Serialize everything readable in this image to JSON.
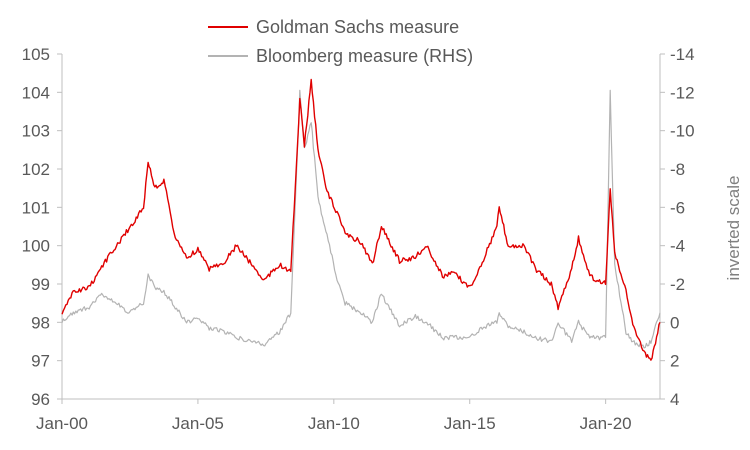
{
  "chart_data": {
    "type": "line",
    "title": "",
    "xlabel": "",
    "ylabel_left": "",
    "ylabel_right": "inverted scale",
    "legend_position": "top-center",
    "grid": false,
    "x_ticks": [
      "Jan-00",
      "Jan-05",
      "Jan-10",
      "Jan-15",
      "Jan-20"
    ],
    "x_range": [
      "2000-01",
      "2022-01"
    ],
    "y_left": {
      "min": 96,
      "max": 105,
      "ticks": [
        "96",
        "97",
        "98",
        "99",
        "100",
        "101",
        "102",
        "103",
        "104",
        "105"
      ]
    },
    "y_right": {
      "min": -14,
      "max": 4,
      "inverted": true,
      "ticks": [
        "-14",
        "-12",
        "-10",
        "-8",
        "-6",
        "-4",
        "-2",
        "0",
        "2",
        "4"
      ]
    },
    "series": [
      {
        "name": "Goldman Sachs measure",
        "axis": "left",
        "color": "#e00000",
        "points": [
          [
            "2000-01",
            98.2
          ],
          [
            "2000-06",
            98.8
          ],
          [
            "2001-01",
            98.9
          ],
          [
            "2001-06",
            99.4
          ],
          [
            "2002-01",
            100.0
          ],
          [
            "2002-06",
            100.4
          ],
          [
            "2003-01",
            101.0
          ],
          [
            "2003-03",
            102.2
          ],
          [
            "2003-06",
            101.5
          ],
          [
            "2003-10",
            101.7
          ],
          [
            "2004-03",
            100.2
          ],
          [
            "2004-08",
            99.7
          ],
          [
            "2005-01",
            99.9
          ],
          [
            "2005-06",
            99.4
          ],
          [
            "2006-01",
            99.6
          ],
          [
            "2006-06",
            100.0
          ],
          [
            "2007-01",
            99.5
          ],
          [
            "2007-06",
            99.1
          ],
          [
            "2008-01",
            99.5
          ],
          [
            "2008-06",
            99.3
          ],
          [
            "2008-10",
            103.8
          ],
          [
            "2008-12",
            102.6
          ],
          [
            "2009-03",
            104.3
          ],
          [
            "2009-06",
            102.5
          ],
          [
            "2009-10",
            101.4
          ],
          [
            "2010-03",
            100.8
          ],
          [
            "2010-06",
            100.3
          ],
          [
            "2011-01",
            100.1
          ],
          [
            "2011-06",
            99.5
          ],
          [
            "2011-10",
            100.5
          ],
          [
            "2012-06",
            99.6
          ],
          [
            "2013-01",
            99.7
          ],
          [
            "2013-06",
            100.0
          ],
          [
            "2014-01",
            99.2
          ],
          [
            "2014-06",
            99.3
          ],
          [
            "2015-01",
            98.9
          ],
          [
            "2015-06",
            99.5
          ],
          [
            "2016-01",
            100.5
          ],
          [
            "2016-02",
            101.0
          ],
          [
            "2016-06",
            100.0
          ],
          [
            "2017-01",
            100.0
          ],
          [
            "2017-06",
            99.4
          ],
          [
            "2018-01",
            99.0
          ],
          [
            "2018-04",
            98.4
          ],
          [
            "2018-10",
            99.4
          ],
          [
            "2019-01",
            100.2
          ],
          [
            "2019-06",
            99.2
          ],
          [
            "2020-01",
            99.0
          ],
          [
            "2020-03",
            101.5
          ],
          [
            "2020-05",
            99.8
          ],
          [
            "2020-10",
            98.8
          ],
          [
            "2021-01",
            97.9
          ],
          [
            "2021-06",
            97.2
          ],
          [
            "2021-09",
            97.0
          ],
          [
            "2022-01",
            98.0
          ]
        ]
      },
      {
        "name": "Bloomberg measure (RHS)",
        "axis": "right",
        "color": "#b3b3b3",
        "points": [
          [
            "2000-01",
            0.0
          ],
          [
            "2000-06",
            -0.5
          ],
          [
            "2001-01",
            -0.8
          ],
          [
            "2001-06",
            -1.5
          ],
          [
            "2002-01",
            -1.0
          ],
          [
            "2002-06",
            -0.5
          ],
          [
            "2003-01",
            -1.0
          ],
          [
            "2003-03",
            -2.5
          ],
          [
            "2003-06",
            -1.8
          ],
          [
            "2003-10",
            -1.6
          ],
          [
            "2004-03",
            -0.8
          ],
          [
            "2004-08",
            0.0
          ],
          [
            "2005-01",
            -0.2
          ],
          [
            "2005-06",
            0.3
          ],
          [
            "2006-01",
            0.5
          ],
          [
            "2006-06",
            0.8
          ],
          [
            "2007-01",
            1.0
          ],
          [
            "2007-06",
            1.2
          ],
          [
            "2008-01",
            0.5
          ],
          [
            "2008-06",
            -0.5
          ],
          [
            "2008-10",
            -12.0
          ],
          [
            "2008-12",
            -9.0
          ],
          [
            "2009-03",
            -10.5
          ],
          [
            "2009-06",
            -6.5
          ],
          [
            "2009-10",
            -4.5
          ],
          [
            "2010-03",
            -2.0
          ],
          [
            "2010-06",
            -1.0
          ],
          [
            "2011-01",
            -0.5
          ],
          [
            "2011-06",
            0.0
          ],
          [
            "2011-10",
            -1.5
          ],
          [
            "2012-06",
            0.2
          ],
          [
            "2013-01",
            -0.3
          ],
          [
            "2013-06",
            0.0
          ],
          [
            "2014-01",
            0.8
          ],
          [
            "2014-06",
            0.8
          ],
          [
            "2015-01",
            0.8
          ],
          [
            "2015-06",
            0.3
          ],
          [
            "2016-01",
            0.0
          ],
          [
            "2016-02",
            -0.5
          ],
          [
            "2016-06",
            0.2
          ],
          [
            "2017-01",
            0.5
          ],
          [
            "2017-06",
            0.8
          ],
          [
            "2018-01",
            1.0
          ],
          [
            "2018-04",
            0.0
          ],
          [
            "2018-10",
            1.0
          ],
          [
            "2019-01",
            0.0
          ],
          [
            "2019-06",
            0.8
          ],
          [
            "2020-01",
            0.8
          ],
          [
            "2020-03",
            -12.0
          ],
          [
            "2020-05",
            -3.0
          ],
          [
            "2020-10",
            0.5
          ],
          [
            "2021-01",
            1.0
          ],
          [
            "2021-06",
            1.3
          ],
          [
            "2021-09",
            1.0
          ],
          [
            "2022-01",
            -0.5
          ]
        ]
      }
    ]
  }
}
